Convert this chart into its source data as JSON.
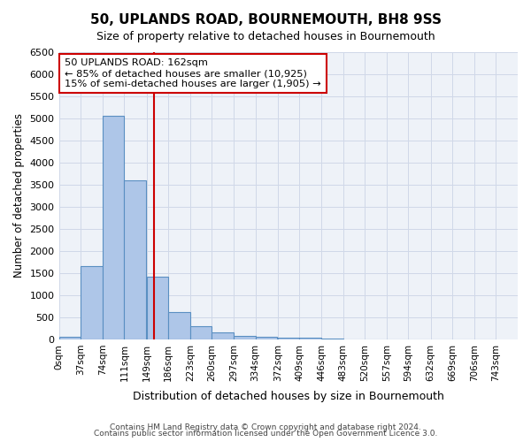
{
  "title": "50, UPLANDS ROAD, BOURNEMOUTH, BH8 9SS",
  "subtitle": "Size of property relative to detached houses in Bournemouth",
  "xlabel": "Distribution of detached houses by size in Bournemouth",
  "ylabel": "Number of detached properties",
  "bar_left_edges": [
    0,
    37,
    74,
    111,
    149,
    186,
    223,
    260,
    297,
    334,
    372,
    409,
    446,
    483,
    520,
    557,
    594,
    632,
    669,
    706
  ],
  "bar_heights": [
    50,
    1650,
    5050,
    3600,
    1420,
    610,
    300,
    150,
    80,
    50,
    40,
    30,
    20,
    5,
    5,
    3,
    2,
    1,
    1,
    1
  ],
  "bin_width": 37,
  "bar_color": "#aec6e8",
  "bar_edge_color": "#5a8fc2",
  "bar_edge_width": 0.8,
  "vline_x": 162,
  "vline_color": "#cc0000",
  "annotation_text": "50 UPLANDS ROAD: 162sqm\n← 85% of detached houses are smaller (10,925)\n15% of semi-detached houses are larger (1,905) →",
  "annotation_box_color": "#cc0000",
  "ylim": [
    0,
    6500
  ],
  "yticks": [
    0,
    500,
    1000,
    1500,
    2000,
    2500,
    3000,
    3500,
    4000,
    4500,
    5000,
    5500,
    6000,
    6500
  ],
  "tick_positions": [
    0,
    37,
    74,
    111,
    149,
    186,
    223,
    260,
    297,
    334,
    372,
    409,
    446,
    483,
    520,
    557,
    594,
    632,
    669,
    706,
    743
  ],
  "tick_labels": [
    "0sqm",
    "37sqm",
    "74sqm",
    "111sqm",
    "149sqm",
    "186sqm",
    "223sqm",
    "260sqm",
    "297sqm",
    "334sqm",
    "372sqm",
    "409sqm",
    "446sqm",
    "483sqm",
    "520sqm",
    "557sqm",
    "594sqm",
    "632sqm",
    "669sqm",
    "706sqm",
    "743sqm"
  ],
  "grid_color": "#d0d8e8",
  "bg_color": "#eef2f8",
  "footer1": "Contains HM Land Registry data © Crown copyright and database right 2024.",
  "footer2": "Contains public sector information licensed under the Open Government Licence 3.0."
}
